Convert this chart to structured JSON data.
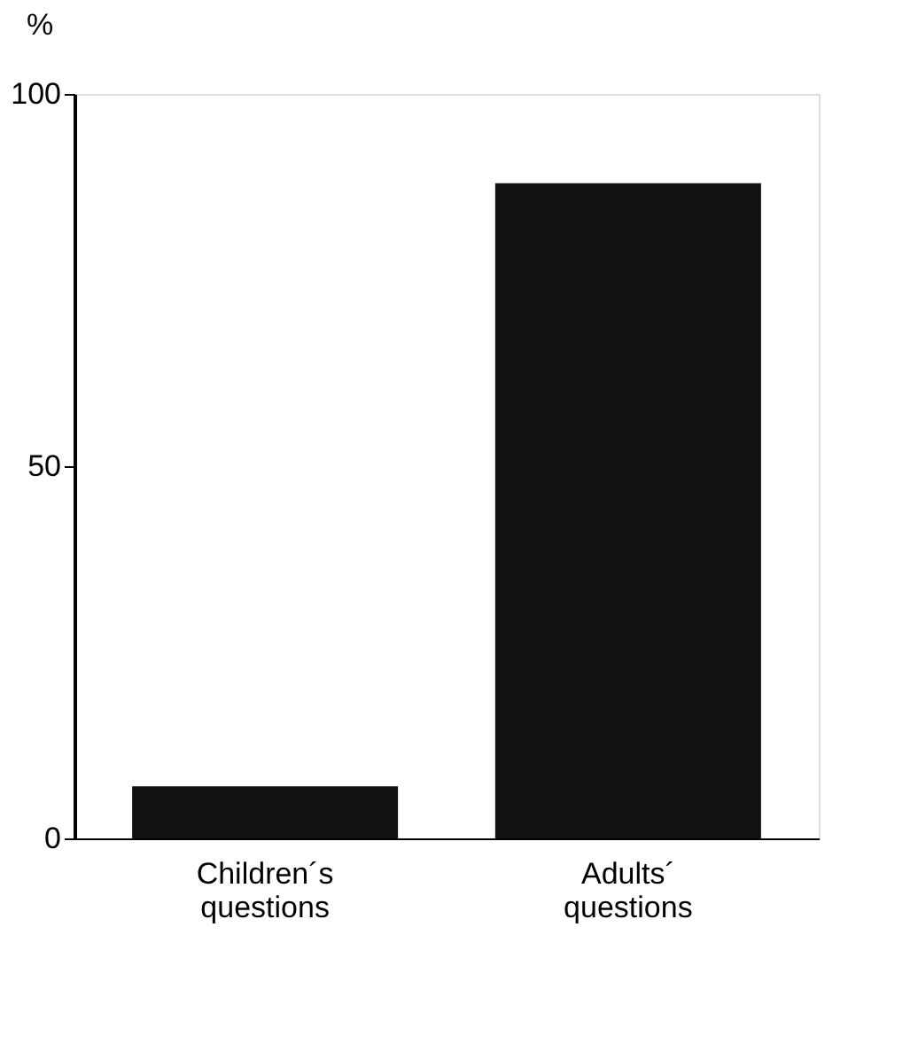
{
  "chart_data": {
    "type": "bar",
    "ylabel": "%",
    "categories": [
      "Children´s questions",
      "Adults´ questions"
    ],
    "values": [
      7,
      88
    ],
    "color": "#111111",
    "ylim": [
      0,
      100
    ],
    "yticks": [
      0,
      50,
      100
    ],
    "grid": false
  }
}
